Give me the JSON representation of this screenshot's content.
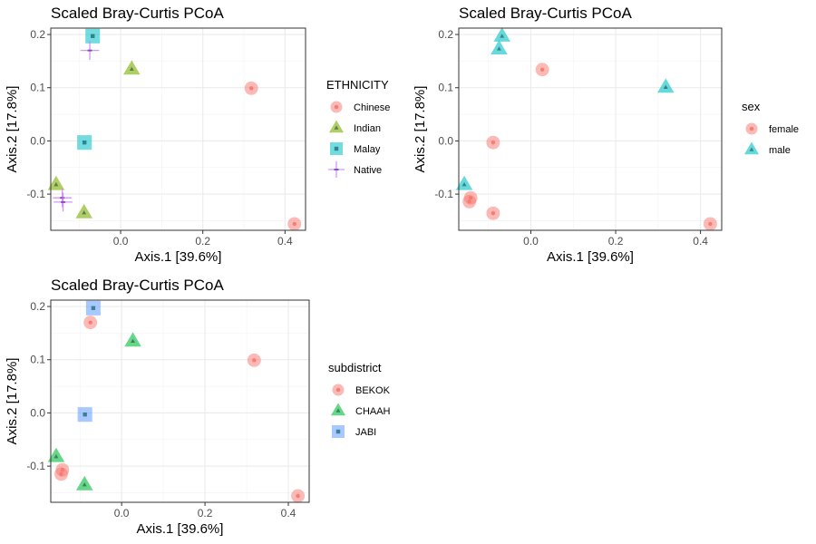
{
  "chart_data": [
    {
      "type": "scatter",
      "title": "Scaled Bray-Curtis PCoA",
      "xlabel": "Axis.1   [39.6%]",
      "ylabel": "Axis.2   [17.8%]",
      "xlim": [
        -0.17,
        0.45
      ],
      "ylim": [
        -0.168,
        0.212
      ],
      "xticks": [
        "0.0",
        "0.2",
        "0.4"
      ],
      "xtick_values": [
        0,
        0.2,
        0.4
      ],
      "yticks": [
        "0.2",
        "0.1",
        "0.0",
        "-0.1"
      ],
      "ytick_values": [
        0.2,
        0.1,
        0,
        -0.1
      ],
      "grid": true,
      "legend": {
        "title": "ETHNICITY",
        "position": "right"
      },
      "series": [
        {
          "name": "Chinese",
          "color": "#F8766D",
          "shape": "circle",
          "points": [
            [
              0.318,
              0.099
            ],
            [
              0.423,
              -0.156
            ]
          ]
        },
        {
          "name": "Indian",
          "color": "#7CAE00",
          "shape": "triangle",
          "points": [
            [
              0.027,
              0.135
            ],
            [
              -0.157,
              -0.082
            ],
            [
              -0.089,
              -0.135
            ]
          ]
        },
        {
          "name": "Malay",
          "color": "#00BFC4",
          "shape": "square",
          "points": [
            [
              -0.068,
              0.197
            ],
            [
              -0.088,
              -0.003
            ]
          ]
        },
        {
          "name": "Native",
          "color": "#C77CFF",
          "shape": "plus",
          "points": [
            [
              -0.075,
              0.17
            ],
            [
              -0.142,
              -0.107
            ],
            [
              -0.14,
              -0.115
            ]
          ]
        }
      ]
    },
    {
      "type": "scatter",
      "title": "Scaled Bray-Curtis PCoA",
      "xlabel": "Axis.1   [39.6%]",
      "ylabel": "Axis.2   [17.8%]",
      "xlim": [
        -0.17,
        0.45
      ],
      "ylim": [
        -0.168,
        0.212
      ],
      "xticks": [
        "0.0",
        "0.2",
        "0.4"
      ],
      "xtick_values": [
        0,
        0.2,
        0.4
      ],
      "yticks": [
        "0.2",
        "0.1",
        "0.0",
        "-0.1"
      ],
      "ytick_values": [
        0.2,
        0.1,
        0,
        -0.1
      ],
      "grid": true,
      "legend": {
        "title": "sex",
        "position": "right"
      },
      "series": [
        {
          "name": "female",
          "color": "#F8766D",
          "shape": "circle",
          "points": [
            [
              0.027,
              0.134
            ],
            [
              -0.089,
              -0.003
            ],
            [
              -0.142,
              -0.107
            ],
            [
              -0.145,
              -0.114
            ],
            [
              -0.089,
              -0.136
            ],
            [
              0.423,
              -0.156
            ]
          ]
        },
        {
          "name": "male",
          "color": "#00BFC4",
          "shape": "triangle",
          "points": [
            [
              -0.068,
              0.197
            ],
            [
              -0.075,
              0.173
            ],
            [
              0.318,
              0.101
            ],
            [
              -0.157,
              -0.082
            ]
          ]
        }
      ]
    },
    {
      "type": "scatter",
      "title": "Scaled Bray-Curtis PCoA",
      "xlabel": "Axis.1   [39.6%]",
      "ylabel": "Axis.2   [17.8%]",
      "xlim": [
        -0.17,
        0.45
      ],
      "ylim": [
        -0.168,
        0.212
      ],
      "xticks": [
        "0.0",
        "0.2",
        "0.4"
      ],
      "xtick_values": [
        0,
        0.2,
        0.4
      ],
      "yticks": [
        "0.2",
        "0.1",
        "0.0",
        "-0.1"
      ],
      "ytick_values": [
        0.2,
        0.1,
        0,
        -0.1
      ],
      "grid": true,
      "legend": {
        "title": "subdistrict",
        "position": "right"
      },
      "series": [
        {
          "name": "BEKOK",
          "color": "#F8766D",
          "shape": "circle",
          "points": [
            [
              -0.075,
              0.17
            ],
            [
              0.318,
              0.099
            ],
            [
              -0.142,
              -0.107
            ],
            [
              -0.145,
              -0.115
            ],
            [
              0.423,
              -0.156
            ]
          ]
        },
        {
          "name": "CHAAH",
          "color": "#00BA38",
          "shape": "triangle",
          "points": [
            [
              0.027,
              0.135
            ],
            [
              -0.157,
              -0.082
            ],
            [
              -0.089,
              -0.135
            ]
          ]
        },
        {
          "name": "JABI",
          "color": "#619CFF",
          "shape": "square",
          "points": [
            [
              -0.068,
              0.197
            ],
            [
              -0.088,
              -0.003
            ]
          ]
        }
      ]
    }
  ]
}
